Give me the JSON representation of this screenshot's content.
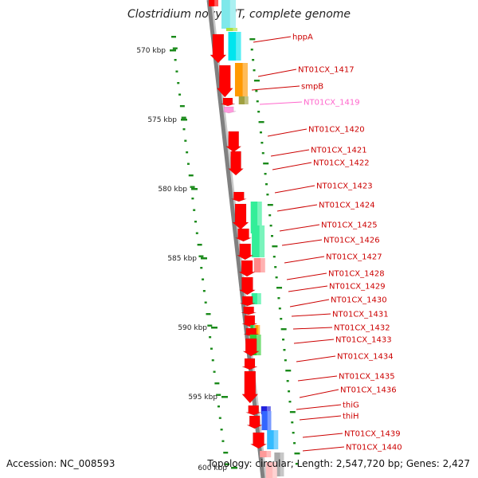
{
  "title": "Clostridium novyi NT, complete genome",
  "footer": {
    "accession": "Accession: NC_008593",
    "topology": "Topology: circular; Length: 2,547,720 bp; Genes: 2,427"
  },
  "colors": {
    "backbone": "#808080",
    "label_red": "#cc0000",
    "label_pink": "#ff66cc",
    "gc_tick": "#1a8a1a"
  },
  "kbp_ticks": [
    "570 kbp",
    "575 kbp",
    "580 kbp",
    "585 kbp",
    "590 kbp",
    "595 kbp",
    "600 kbp"
  ],
  "gene_labels": [
    {
      "text": "hppA",
      "color": "red"
    },
    {
      "text": "NT01CX_1417",
      "color": "red"
    },
    {
      "text": "smpB",
      "color": "red"
    },
    {
      "text": "NT01CX_1419",
      "color": "pink"
    },
    {
      "text": "NT01CX_1420",
      "color": "red"
    },
    {
      "text": "NT01CX_1421",
      "color": "red"
    },
    {
      "text": "NT01CX_1422",
      "color": "red"
    },
    {
      "text": "NT01CX_1423",
      "color": "red"
    },
    {
      "text": "NT01CX_1424",
      "color": "red"
    },
    {
      "text": "NT01CX_1425",
      "color": "red"
    },
    {
      "text": "NT01CX_1426",
      "color": "red"
    },
    {
      "text": "NT01CX_1427",
      "color": "red"
    },
    {
      "text": "NT01CX_1428",
      "color": "red"
    },
    {
      "text": "NT01CX_1429",
      "color": "red"
    },
    {
      "text": "NT01CX_1430",
      "color": "red"
    },
    {
      "text": "NT01CX_1431",
      "color": "red"
    },
    {
      "text": "NT01CX_1432",
      "color": "red"
    },
    {
      "text": "NT01CX_1433",
      "color": "red"
    },
    {
      "text": "NT01CX_1434",
      "color": "red"
    },
    {
      "text": "NT01CX_1435",
      "color": "red"
    },
    {
      "text": "NT01CX_1436",
      "color": "red"
    },
    {
      "text": "thiG",
      "color": "red"
    },
    {
      "text": "thiH",
      "color": "red"
    },
    {
      "text": "NT01CX_1439",
      "color": "red"
    },
    {
      "text": "NT01CX_1440",
      "color": "red"
    }
  ]
}
